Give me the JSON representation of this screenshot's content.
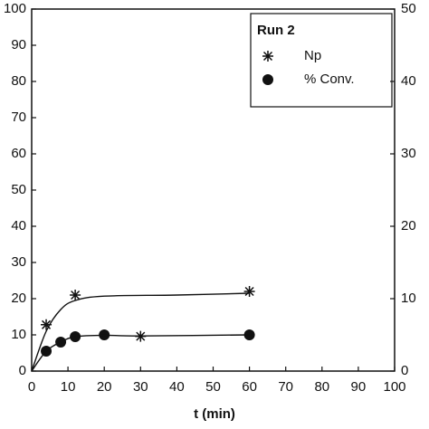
{
  "chart_data": {
    "type": "scatter",
    "x_label": "t (min)",
    "xlim": [
      0,
      100
    ],
    "xticks": [
      0,
      10,
      20,
      30,
      40,
      50,
      60,
      70,
      80,
      90,
      100
    ],
    "ylim": [
      0,
      100
    ],
    "yticks": [
      0,
      10,
      20,
      30,
      40,
      50,
      60,
      70,
      80,
      90,
      100
    ],
    "y2lim": [
      0,
      50
    ],
    "y2ticks": [
      0,
      10,
      20,
      30,
      40,
      50
    ],
    "legend_title": "Run 2",
    "legend": "upper right",
    "series": [
      {
        "name": "Np",
        "marker": "asterisk",
        "axis": "y2",
        "color": "#111111",
        "x": [
          4,
          12,
          30,
          60
        ],
        "values": [
          6.4,
          10.5,
          4.8,
          11
        ]
      },
      {
        "name": "% Conv.",
        "marker": "circle",
        "color": "#111111",
        "x": [
          4,
          8,
          12,
          20,
          60
        ],
        "values": [
          5.5,
          8,
          9.5,
          10,
          10
        ]
      },
      {
        "marker": "line",
        "axis": "y2",
        "color": "#111111",
        "x": [
          0,
          4,
          8,
          12,
          20,
          40,
          60
        ],
        "values": [
          0,
          5.5,
          8.5,
          9.75,
          10.35,
          10.5,
          10.75
        ]
      },
      {
        "marker": "line",
        "color": "#111111",
        "x": [
          0,
          4,
          8,
          12,
          20,
          30,
          60
        ],
        "values": [
          0,
          5.5,
          8,
          9.5,
          9.9,
          9.7,
          10
        ]
      }
    ]
  }
}
